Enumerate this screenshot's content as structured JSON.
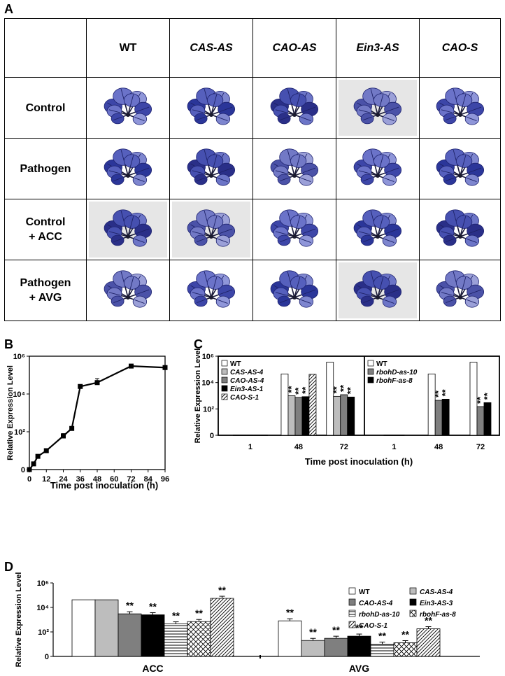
{
  "panels": {
    "a": "A",
    "b": "B",
    "c": "C",
    "d": "D"
  },
  "panel_a": {
    "corner": "",
    "columns": [
      "WT",
      "CAS-AS",
      "CAO-AS",
      "Ein3-AS",
      "CAO-S"
    ],
    "rows": [
      {
        "label_line1": "Control",
        "label_line2": ""
      },
      {
        "label_line1": "Pathogen",
        "label_line2": ""
      },
      {
        "label_line1": "Control",
        "label_line2": "+ ACC"
      },
      {
        "label_line1": "Pathogen",
        "label_line2": "+ AVG"
      }
    ],
    "image_kind": "stained Arabidopsis rosette"
  },
  "chart_data": [
    {
      "type": "line",
      "id": "B",
      "title": "",
      "xlabel": "Time post inoculation (h)",
      "ylabel": "Relative Expression Level",
      "x": [
        0,
        3,
        6,
        12,
        24,
        30,
        36,
        48,
        72,
        96
      ],
      "y": [
        1,
        2,
        5,
        10,
        60,
        150,
        25000,
        40000,
        300000,
        250000
      ],
      "yerr_upper": [
        null,
        null,
        null,
        null,
        80,
        180,
        null,
        65000,
        null,
        null
      ],
      "xticks": [
        "0",
        "12",
        "24",
        "36",
        "48",
        "60",
        "72",
        "84",
        "96"
      ],
      "yticks": [
        "0",
        "10²",
        "10⁴",
        "10⁶"
      ],
      "yscale": "log-with-zero",
      "ylim": [
        1,
        1000000
      ],
      "xlim": [
        0,
        96
      ]
    },
    {
      "type": "bar",
      "id": "C",
      "xlabel": "Time post inoculation (h)",
      "ylabel": "Relative Expression Level",
      "yticks": [
        "0",
        "10²",
        "10⁴",
        "10⁶"
      ],
      "ylim": [
        1,
        1000000
      ],
      "subpanels": [
        {
          "categories": [
            "1",
            "48",
            "72"
          ],
          "legend_position": "top-left",
          "series": [
            {
              "name": "WT",
              "pattern": "white",
              "values": [
                1,
                45000,
                350000
              ],
              "stars": [
                "",
                "",
                ""
              ]
            },
            {
              "name": "CAS-AS-4",
              "pattern": "lightgray",
              "values": [
                1,
                1000,
                900
              ],
              "stars": [
                "",
                "**",
                "**"
              ]
            },
            {
              "name": "CAO-AS-4",
              "pattern": "darkgray",
              "values": [
                1,
                750,
                1200
              ],
              "stars": [
                "",
                "**",
                "**"
              ]
            },
            {
              "name": "Ein3-AS-1",
              "pattern": "black",
              "values": [
                1,
                850,
                800
              ],
              "stars": [
                "",
                "**",
                "**"
              ]
            },
            {
              "name": "CAO-S-1",
              "pattern": "diagonal",
              "values": [
                1,
                42000,
                0
              ],
              "stars": [
                "",
                "",
                ""
              ]
            }
          ]
        },
        {
          "categories": [
            "1",
            "48",
            "72"
          ],
          "legend_position": "top-left",
          "series": [
            {
              "name": "WT",
              "pattern": "white",
              "values": [
                1,
                45000,
                350000
              ],
              "stars": [
                "",
                "",
                ""
              ]
            },
            {
              "name": "rbohD-as-10",
              "pattern": "darkgray",
              "values": [
                1,
                450,
                150
              ],
              "stars": [
                "",
                "**",
                "**"
              ]
            },
            {
              "name": "rbohF-as-8",
              "pattern": "black",
              "values": [
                1,
                550,
                300
              ],
              "stars": [
                "",
                "**",
                "**"
              ]
            }
          ]
        }
      ]
    },
    {
      "type": "bar",
      "id": "D",
      "xlabel": "",
      "ylabel": "Relative Expression Level",
      "categories": [
        "ACC",
        "AVG"
      ],
      "yticks": [
        "0",
        "10²",
        "10⁴",
        "10⁶"
      ],
      "ylim": [
        1,
        1000000
      ],
      "legend_position": "top-right",
      "series": [
        {
          "name": "WT",
          "pattern": "white",
          "values": [
            42000,
            800
          ],
          "stars": [
            "",
            "**"
          ]
        },
        {
          "name": "CAS-AS-4",
          "pattern": "lightgray",
          "values": [
            42000,
            20
          ],
          "stars": [
            "",
            "**"
          ]
        },
        {
          "name": "CAO-AS-4",
          "pattern": "darkgray",
          "values": [
            3000,
            30
          ],
          "stars": [
            "**",
            "**"
          ]
        },
        {
          "name": "Ein3-AS-3",
          "pattern": "black",
          "values": [
            2500,
            45
          ],
          "stars": [
            "**",
            "**"
          ]
        },
        {
          "name": "rbohD-as-10",
          "pattern": "hlines",
          "values": [
            450,
            10
          ],
          "stars": [
            "**",
            "**"
          ]
        },
        {
          "name": "rbohF-as-8",
          "pattern": "diamond",
          "values": [
            700,
            13
          ],
          "stars": [
            "**",
            "**"
          ]
        },
        {
          "name": "CAO-S-1",
          "pattern": "diagonal",
          "values": [
            55000,
            180
          ],
          "stars": [
            "**",
            "**"
          ]
        }
      ]
    }
  ]
}
